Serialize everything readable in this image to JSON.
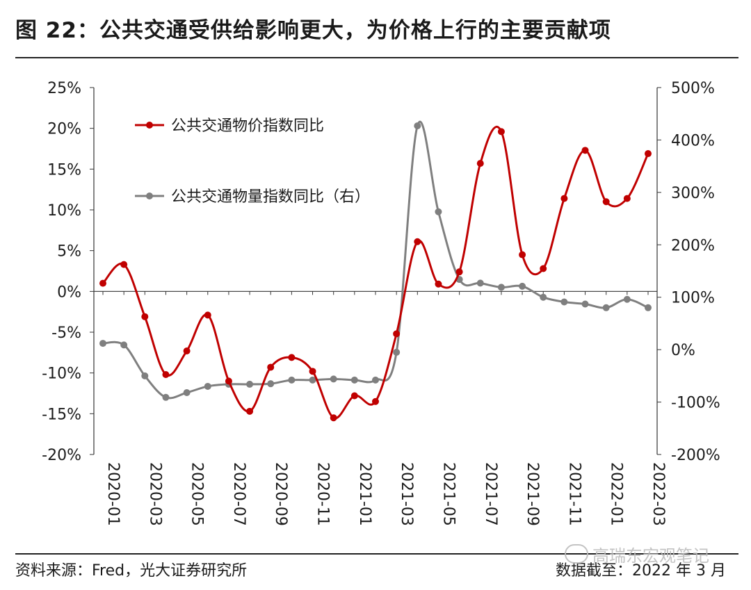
{
  "header": {
    "title": "图 22：公共交通受供给影响更大，为价格上行的主要贡献项"
  },
  "footer": {
    "source": "资料来源：Fred，光大证券研究所",
    "cutoff": "数据截至：2022 年 3 月"
  },
  "watermark": {
    "text": "高瑞东宏观笔记",
    "icon": "wechat-icon"
  },
  "chart_data": {
    "type": "line",
    "x": [
      "2020-01",
      "2020-02",
      "2020-03",
      "2020-04",
      "2020-05",
      "2020-06",
      "2020-07",
      "2020-08",
      "2020-09",
      "2020-10",
      "2020-11",
      "2020-12",
      "2021-01",
      "2021-02",
      "2021-03",
      "2021-04",
      "2021-05",
      "2021-06",
      "2021-07",
      "2021-08",
      "2021-09",
      "2021-10",
      "2021-11",
      "2021-12",
      "2022-01",
      "2022-02",
      "2022-03"
    ],
    "x_tick_labels": [
      "2020-01",
      "2020-03",
      "2020-05",
      "2020-07",
      "2020-09",
      "2020-11",
      "2021-01",
      "2021-03",
      "2021-05",
      "2021-07",
      "2021-09",
      "2021-11",
      "2022-01",
      "2022-03"
    ],
    "y_left": {
      "min": -20,
      "max": 25,
      "ticks": [
        "25%",
        "20%",
        "15%",
        "10%",
        "5%",
        "0%",
        "-5%",
        "-10%",
        "-15%",
        "-20%"
      ]
    },
    "y_right": {
      "min": -200,
      "max": 500,
      "ticks": [
        "500%",
        "400%",
        "300%",
        "200%",
        "100%",
        "0%",
        "-100%",
        "-200%"
      ]
    },
    "series": [
      {
        "name": "公共交通物价指数同比",
        "axis": "left",
        "color": "#c00000",
        "values": [
          1.0,
          3.3,
          -3.1,
          -10.2,
          -7.3,
          -2.9,
          -11.0,
          -14.7,
          -9.3,
          -8.1,
          -9.8,
          -15.5,
          -12.8,
          -13.5,
          -5.2,
          6.1,
          0.9,
          2.4,
          15.7,
          19.6,
          4.5,
          2.8,
          11.4,
          17.3,
          11.0,
          11.4,
          16.9
        ]
      },
      {
        "name": "公共交通物量指数同比（右）",
        "axis": "right",
        "color": "#7f7f7f",
        "values": [
          12,
          9,
          -50,
          -91,
          -82,
          -70,
          -66,
          -66,
          -65,
          -58,
          -58,
          -56,
          -58,
          -58,
          -5,
          427,
          263,
          134,
          127,
          119,
          121,
          100,
          91,
          87,
          80,
          96,
          80
        ]
      }
    ]
  }
}
